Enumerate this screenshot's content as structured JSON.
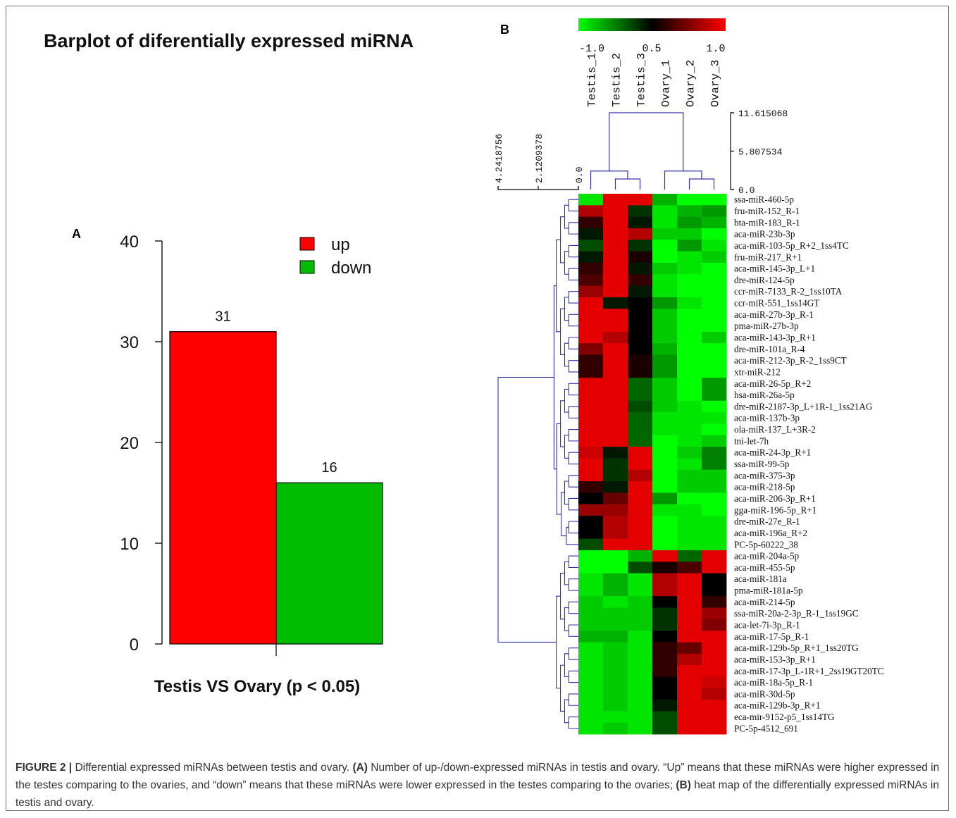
{
  "panel_a": {
    "label": "A",
    "title": "Barplot of diferentially expressed miRNA",
    "xlabel": "Testis VS Ovary (p < 0.05)",
    "legend": [
      {
        "label": "up",
        "color": "#ff0000"
      },
      {
        "label": "down",
        "color": "#00bb00"
      }
    ],
    "y_ticks": [
      "0",
      "10",
      "20",
      "30",
      "40"
    ]
  },
  "panel_b": {
    "label": "B",
    "color_scale": {
      "colors": [
        "#00ff00",
        "#000000",
        "#ff0000"
      ],
      "tick_labels": [
        "-1.0",
        "0.5",
        "1.0"
      ]
    },
    "samples": [
      "Testis_1",
      "Testis_2",
      "Testis_3",
      "Ovary_1",
      "Ovary_2",
      "Ovary_3"
    ],
    "col_tree_scale": [
      "11.615068",
      "5.807534",
      "0.0"
    ],
    "row_tree_scale": [
      "4.2418756",
      "2.1209378",
      "0.0"
    ],
    "mirnas": [
      "ssa-miR-460-5p",
      "fru-miR-152_R-1",
      "bta-miR-183_R-1",
      "aca-miR-23b-3p",
      "aca-miR-103-5p_R+2_1ss4TC",
      "fru-miR-217_R+1",
      "aca-miR-145-3p_L+1",
      "dre-miR-124-5p",
      "ccr-miR-7133_R-2_1ss10TA",
      "ccr-miR-551_1ss14GT",
      "aca-miR-27b-3p_R-1",
      "pma-miR-27b-3p",
      "aca-miR-143-3p_R+1",
      "dre-miR-101a_R-4",
      "aca-miR-212-3p_R-2_1ss9CT",
      "xtr-miR-212",
      "aca-miR-26-5p_R+2",
      "hsa-miR-26a-5p",
      "dre-miR-2187-3p_L+1R-1_1ss21AG",
      "aca-miR-137b-3p",
      "ola-miR-137_L+3R-2",
      "tni-let-7h",
      "aca-miR-24-3p_R+1",
      "ssa-miR-99-5p",
      "aca-miR-375-3p",
      "aca-miR-218-5p",
      "aca-miR-206-3p_R+1",
      "gga-miR-196-5p_R+1",
      "dre-miR-27e_R-1",
      "aca-miR-196a_R+2",
      "PC-5p-60222_38",
      "aca-miR-204a-5p",
      "aca-miR-455-5p",
      "aca-miR-181a",
      "pma-miR-181a-5p",
      "aca-miR-214-5p",
      "ssa-miR-20a-2-3p_R-1_1ss19GC",
      "aca-let-7i-3p_R-1",
      "aca-miR-17-5p_R-1",
      "aca-miR-129b-5p_R+1_1ss20TG",
      "aca-miR-153-3p_R+1",
      "aca-miR-17-3p_L-1R+1_2ss19GT20TC",
      "aca-miR-18a-5p_R-1",
      "aca-miR-30d-5p",
      "aca-miR-129b-3p_R+1",
      "eca-mir-9152-p5_1ss14TG",
      "PC-5p-4512_691"
    ]
  },
  "chart_data": [
    {
      "type": "bar",
      "title": "Barplot of diferentially expressed miRNA",
      "xlabel": "Testis VS Ovary (p < 0.05)",
      "ylabel": "",
      "categories": [
        "up",
        "down"
      ],
      "values": [
        31,
        16
      ],
      "colors": [
        "#ff0000",
        "#00bb00"
      ],
      "ylim": [
        0,
        40
      ],
      "y_ticks": [
        0,
        10,
        20,
        30,
        40
      ],
      "legend": "top-right",
      "grid": false
    },
    {
      "type": "heatmap",
      "columns": [
        "Testis_1",
        "Testis_2",
        "Testis_3",
        "Ovary_1",
        "Ovary_2",
        "Ovary_3"
      ],
      "color_range": [
        -1.0,
        1.0
      ],
      "values": [
        [
          0.05,
          0.95,
          0.95,
          0.15,
          0.0,
          0.0
        ],
        [
          0.85,
          0.95,
          0.4,
          0.05,
          0.15,
          0.2
        ],
        [
          0.6,
          0.95,
          0.45,
          0.05,
          0.2,
          0.15
        ],
        [
          0.45,
          0.95,
          0.85,
          0.1,
          0.1,
          0.0
        ],
        [
          0.35,
          0.95,
          0.4,
          0.0,
          0.2,
          0.05
        ],
        [
          0.45,
          0.95,
          0.55,
          0.0,
          0.05,
          0.1
        ],
        [
          0.6,
          0.95,
          0.45,
          0.1,
          0.05,
          0.0
        ],
        [
          0.65,
          0.95,
          0.6,
          0.05,
          0.0,
          0.0
        ],
        [
          0.8,
          0.95,
          0.45,
          0.05,
          0.0,
          0.0
        ],
        [
          0.95,
          0.45,
          0.5,
          0.2,
          0.05,
          0.0
        ],
        [
          0.95,
          0.95,
          0.5,
          0.1,
          0.0,
          0.0
        ],
        [
          0.95,
          0.95,
          0.5,
          0.1,
          0.0,
          0.0
        ],
        [
          0.95,
          0.85,
          0.5,
          0.1,
          0.0,
          0.1
        ],
        [
          0.75,
          0.95,
          0.5,
          0.15,
          0.0,
          0.0
        ],
        [
          0.6,
          0.95,
          0.55,
          0.2,
          0.0,
          0.0
        ],
        [
          0.6,
          0.95,
          0.55,
          0.2,
          0.0,
          0.0
        ],
        [
          0.95,
          0.95,
          0.3,
          0.1,
          0.0,
          0.2
        ],
        [
          0.95,
          0.95,
          0.3,
          0.1,
          0.0,
          0.2
        ],
        [
          0.95,
          0.95,
          0.35,
          0.1,
          0.05,
          0.0
        ],
        [
          0.95,
          0.95,
          0.3,
          0.05,
          0.05,
          0.05
        ],
        [
          0.95,
          0.95,
          0.3,
          0.05,
          0.05,
          0.0
        ],
        [
          0.95,
          0.95,
          0.3,
          0.0,
          0.05,
          0.1
        ],
        [
          0.9,
          0.45,
          0.95,
          0.0,
          0.1,
          0.25
        ],
        [
          0.95,
          0.4,
          0.95,
          0.0,
          0.05,
          0.25
        ],
        [
          0.95,
          0.4,
          0.85,
          0.0,
          0.1,
          0.1
        ],
        [
          0.6,
          0.45,
          0.95,
          0.0,
          0.1,
          0.1
        ],
        [
          0.5,
          0.7,
          0.95,
          0.2,
          0.0,
          0.0
        ],
        [
          0.8,
          0.8,
          0.95,
          0.05,
          0.05,
          0.0
        ],
        [
          0.5,
          0.85,
          0.95,
          0.0,
          0.05,
          0.05
        ],
        [
          0.5,
          0.85,
          0.95,
          0.0,
          0.05,
          0.05
        ],
        [
          0.35,
          0.95,
          0.95,
          0.0,
          0.05,
          0.05
        ],
        [
          0.0,
          0.0,
          0.15,
          0.95,
          0.3,
          0.95
        ],
        [
          0.0,
          0.0,
          0.35,
          0.55,
          0.65,
          0.95
        ],
        [
          0.05,
          0.15,
          0.05,
          0.85,
          0.95,
          0.5
        ],
        [
          0.05,
          0.15,
          0.05,
          0.85,
          0.95,
          0.5
        ],
        [
          0.1,
          0.05,
          0.1,
          0.5,
          0.95,
          0.6
        ],
        [
          0.1,
          0.1,
          0.1,
          0.4,
          0.95,
          0.8
        ],
        [
          0.1,
          0.1,
          0.1,
          0.4,
          0.95,
          0.75
        ],
        [
          0.15,
          0.15,
          0.05,
          0.5,
          0.95,
          0.95
        ],
        [
          0.05,
          0.1,
          0.05,
          0.6,
          0.7,
          0.95
        ],
        [
          0.05,
          0.1,
          0.05,
          0.6,
          0.85,
          0.95
        ],
        [
          0.05,
          0.1,
          0.05,
          0.6,
          0.95,
          0.95
        ],
        [
          0.05,
          0.1,
          0.05,
          0.5,
          0.95,
          0.9
        ],
        [
          0.05,
          0.1,
          0.05,
          0.5,
          0.95,
          0.85
        ],
        [
          0.05,
          0.1,
          0.05,
          0.45,
          0.95,
          0.95
        ],
        [
          0.05,
          0.05,
          0.05,
          0.35,
          0.95,
          0.95
        ],
        [
          0.05,
          0.1,
          0.05,
          0.35,
          0.95,
          0.95
        ]
      ]
    }
  ],
  "caption": {
    "figure_label": "FIGURE 2 |",
    "intro": " Differential expressed miRNAs between testis and ovary. ",
    "a_label": "(A)",
    "a_text": " Number of up-/down-expressed miRNAs in testis and ovary. “Up” means that these miRNAs were higher expressed in the testes comparing to the ovaries, and “down” means that these miRNAs were lower expressed in the testes comparing to the ovaries; ",
    "b_label": "(B)",
    "b_text": " heat map of the differentially expressed miRNAs in testis and ovary."
  }
}
